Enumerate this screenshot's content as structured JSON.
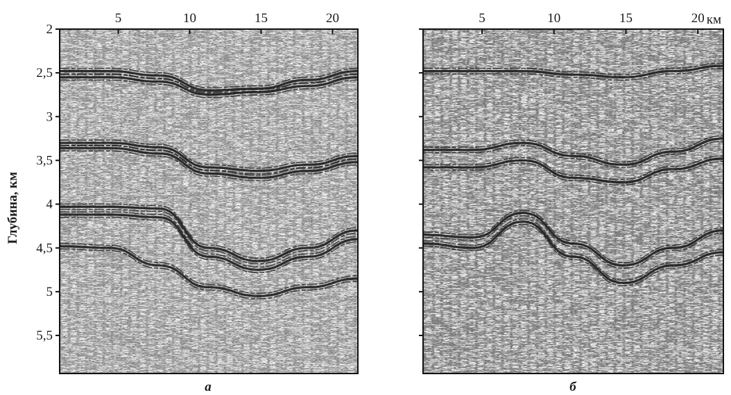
{
  "figure": {
    "ylabel": "Глубина, км",
    "x_unit": "км",
    "x_ticks": [
      "5",
      "10",
      "15",
      "20"
    ],
    "y_ticks": [
      "2",
      "2,5",
      "3",
      "3,5",
      "4",
      "4,5",
      "5",
      "5,5"
    ],
    "panels": [
      {
        "label": "а",
        "horizons": [
          {
            "depth_km": [
              2.48,
              2.48,
              2.53,
              2.7,
              2.68,
              2.58,
              2.48
            ]
          },
          {
            "depth_km": [
              2.55,
              2.55,
              2.6,
              2.75,
              2.72,
              2.65,
              2.55
            ]
          },
          {
            "depth_km": [
              3.3,
              3.3,
              3.35,
              3.58,
              3.62,
              3.55,
              3.45
            ]
          },
          {
            "depth_km": [
              3.36,
              3.36,
              3.42,
              3.65,
              3.7,
              3.62,
              3.52
            ]
          },
          {
            "depth_km": [
              4.03,
              4.03,
              4.05,
              4.5,
              4.65,
              4.5,
              4.3
            ]
          },
          {
            "depth_km": [
              4.12,
              4.12,
              4.15,
              4.6,
              4.75,
              4.6,
              4.4
            ]
          },
          {
            "depth_km": [
              4.48,
              4.5,
              4.7,
              4.95,
              5.05,
              4.95,
              4.85
            ]
          }
        ]
      },
      {
        "label": "б",
        "horizons": [
          {
            "depth_km": [
              2.48,
              2.48,
              2.48,
              2.52,
              2.55,
              2.48,
              2.42
            ]
          },
          {
            "depth_km": [
              3.38,
              3.38,
              3.3,
              3.45,
              3.55,
              3.4,
              3.25
            ]
          },
          {
            "depth_km": [
              3.58,
              3.58,
              3.5,
              3.7,
              3.75,
              3.6,
              3.48
            ]
          },
          {
            "depth_km": [
              4.35,
              4.38,
              4.1,
              4.45,
              4.7,
              4.5,
              4.3
            ]
          },
          {
            "depth_km": [
              4.45,
              4.5,
              4.2,
              4.6,
              4.9,
              4.7,
              4.55
            ]
          }
        ]
      }
    ]
  }
}
